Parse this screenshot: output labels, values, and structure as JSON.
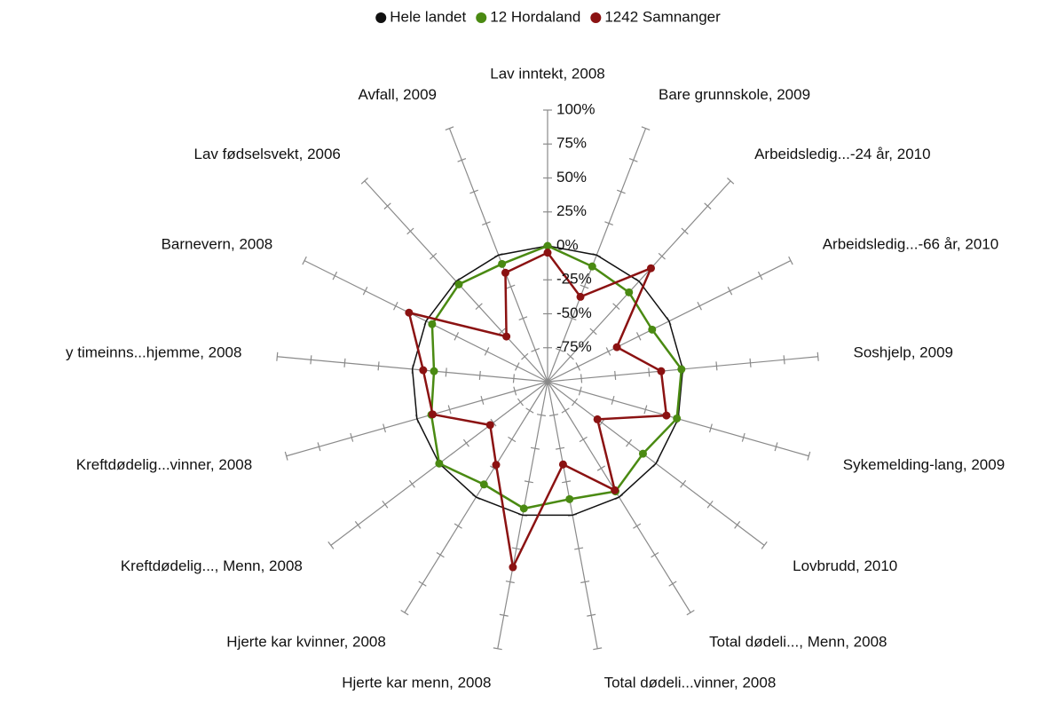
{
  "chart_data": {
    "type": "radar",
    "categories": [
      "Lav inntekt, 2008",
      "Bare grunnskole, 2009",
      "Arbeidsledig...-24 år, 2010",
      "Arbeidsledig...-66 år, 2010",
      "Soshjelp, 2009",
      "Sykemelding-lang, 2009",
      "Lovbrudd, 2010",
      "Total dødeli..., Menn, 2008",
      "Total dødeli...vinner, 2008",
      "Hjerte kar menn, 2008",
      "Hjerte kar kvinner, 2008",
      "Kreftdødelig..., Menn, 2008",
      "Kreftdødelig...vinner, 2008",
      "y timeinns...hjemme, 2008",
      "Barnevern, 2008",
      "Lav fødselsvekt, 2006",
      "Avfall, 2009"
    ],
    "series": [
      {
        "name": "Hele landet",
        "color": "#111111",
        "values": [
          0,
          0,
          0,
          0,
          0,
          0,
          0,
          0,
          0,
          0,
          0,
          0,
          0,
          0,
          0,
          0,
          0
        ]
      },
      {
        "name": "12 Hordaland",
        "color": "#4a8a12",
        "values": [
          0,
          -9,
          -11,
          -14,
          -1,
          -1,
          -12,
          -5,
          -12,
          -5,
          -11,
          0,
          -11,
          -16,
          -5,
          -3,
          -7
        ]
      },
      {
        "name": "1242 Samnanger",
        "color": "#8b1212",
        "values": [
          -5,
          -33,
          13,
          -43,
          -16,
          -9,
          -54,
          -6,
          -38,
          39,
          -28,
          -47,
          -12,
          -8,
          14,
          -55,
          -14
        ]
      }
    ],
    "ylim": [
      -100,
      100
    ],
    "yticks": [
      {
        "value": -75,
        "label": "-75%"
      },
      {
        "value": -50,
        "label": "-50%"
      },
      {
        "value": -25,
        "label": "-25%"
      },
      {
        "value": 0,
        "label": "0%"
      },
      {
        "value": 25,
        "label": "25%"
      },
      {
        "value": 50,
        "label": "50%"
      },
      {
        "value": 75,
        "label": "75%"
      },
      {
        "value": 100,
        "label": "100%"
      }
    ],
    "legend": "top"
  }
}
